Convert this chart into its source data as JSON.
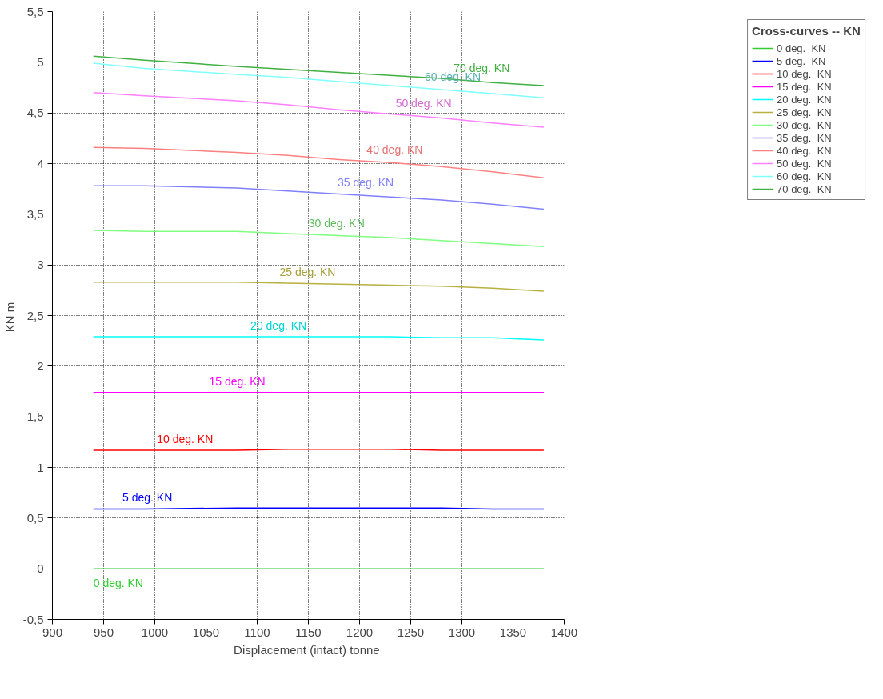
{
  "chart_data": {
    "type": "line",
    "xlabel": "Displacement (intact)  tonne",
    "ylabel": "KN  m",
    "legend_title": "Cross-curves -- KN",
    "legend": "top right",
    "grid": true,
    "line_style": "solid",
    "marker": "none",
    "x": [
      940,
      990,
      1080,
      1130,
      1180,
      1230,
      1280,
      1330,
      1380
    ],
    "xlim": [
      900,
      1400
    ],
    "xticks": [
      900,
      950,
      1000,
      1050,
      1100,
      1150,
      1200,
      1250,
      1300,
      1350,
      1400
    ],
    "ylim": [
      -0.5,
      5.5
    ],
    "yticks": [
      {
        "value": -0.5,
        "label": "-0,5"
      },
      0,
      {
        "value": 0.5,
        "label": "0,5"
      },
      1,
      {
        "value": 1.5,
        "label": "1,5"
      },
      2,
      {
        "value": 2.5,
        "label": "2,5"
      },
      3,
      {
        "value": 3.5,
        "label": "3,5"
      },
      4,
      {
        "value": 4.5,
        "label": "4,5"
      },
      5,
      {
        "value": 5.5,
        "label": "5,5"
      }
    ],
    "series": [
      {
        "name": "0 deg.  KN",
        "color": "#33cc33",
        "values": [
          0,
          0,
          0,
          0,
          0,
          0,
          0,
          0,
          0
        ]
      },
      {
        "name": "5 deg.  KN",
        "color": "#0000ff",
        "values": [
          0.59,
          0.59,
          0.6,
          0.6,
          0.6,
          0.6,
          0.6,
          0.59,
          0.59
        ]
      },
      {
        "name": "10 deg.  KN",
        "color": "#ff0000",
        "values": [
          1.17,
          1.17,
          1.17,
          1.18,
          1.18,
          1.18,
          1.17,
          1.17,
          1.17
        ]
      },
      {
        "name": "15 deg.  KN",
        "color": "#ff00ff",
        "values": [
          1.74,
          1.74,
          1.74,
          1.74,
          1.74,
          1.74,
          1.74,
          1.74,
          1.74
        ]
      },
      {
        "name": "20 deg.  KN",
        "color": "#00ffff",
        "values": [
          2.29,
          2.29,
          2.29,
          2.29,
          2.29,
          2.29,
          2.28,
          2.28,
          2.26
        ]
      },
      {
        "name": "25 deg.  KN",
        "color": "#b8b040",
        "values": [
          2.83,
          2.83,
          2.83,
          2.82,
          2.81,
          2.8,
          2.79,
          2.77,
          2.74
        ]
      },
      {
        "name": "30 deg.  KN",
        "color": "#80ff80",
        "values": [
          3.34,
          3.33,
          3.33,
          3.31,
          3.29,
          3.27,
          3.24,
          3.21,
          3.18
        ]
      },
      {
        "name": "35 deg.  KN",
        "color": "#8080ff",
        "values": [
          3.78,
          3.78,
          3.76,
          3.73,
          3.7,
          3.67,
          3.64,
          3.6,
          3.55
        ]
      },
      {
        "name": "40 deg.  KN",
        "color": "#ff8080",
        "values": [
          4.16,
          4.15,
          4.11,
          4.08,
          4.04,
          4.01,
          3.97,
          3.92,
          3.86
        ]
      },
      {
        "name": "50 deg.  KN",
        "color": "#ff80ff",
        "values": [
          4.7,
          4.67,
          4.62,
          4.58,
          4.53,
          4.49,
          4.45,
          4.4,
          4.36
        ]
      },
      {
        "name": "60 deg.  KN",
        "color": "#80ffff",
        "values": [
          4.99,
          4.94,
          4.88,
          4.85,
          4.81,
          4.77,
          4.73,
          4.69,
          4.65
        ]
      },
      {
        "name": "70 deg.  KN",
        "color": "#40b040",
        "values": [
          5.06,
          5.02,
          4.96,
          4.93,
          4.9,
          4.87,
          4.84,
          4.8,
          4.77
        ]
      }
    ]
  }
}
